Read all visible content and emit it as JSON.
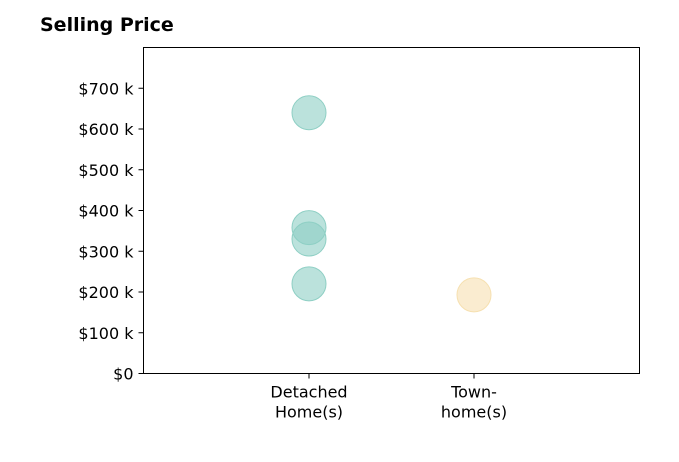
{
  "chart_data": {
    "type": "scatter",
    "title": "Selling Price",
    "xlabel": "",
    "ylabel": "",
    "categories": [
      [
        "Detached",
        "Home(s)"
      ],
      [
        "Town-",
        "home(s)"
      ]
    ],
    "y_ticks": [
      0,
      100,
      200,
      300,
      400,
      500,
      600,
      700
    ],
    "y_tick_labels": [
      "$0",
      "$100 k",
      "$200 k",
      "$300 k",
      "$400 k",
      "$500 k",
      "$600 k",
      "$700 k"
    ],
    "ylim": [
      0,
      800
    ],
    "grid": false,
    "points": [
      {
        "category": 0,
        "value": 640,
        "color": "#8ecfc4"
      },
      {
        "category": 0,
        "value": 358,
        "color": "#8ecfc4"
      },
      {
        "category": 0,
        "value": 330,
        "color": "#8ecfc4"
      },
      {
        "category": 0,
        "value": 220,
        "color": "#8ecfc4"
      },
      {
        "category": 1,
        "value": 193,
        "color": "#f6e0b0"
      }
    ]
  }
}
